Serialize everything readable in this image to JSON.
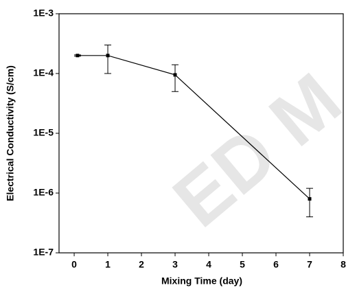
{
  "chart_data": {
    "type": "line",
    "xlabel": "Mixing Time (day)",
    "ylabel": "Electrical Conductivity (S/cm)",
    "watermark": "ED M",
    "x": [
      0.1,
      1,
      3,
      7
    ],
    "series": [
      {
        "color": "#000000",
        "values": [
          0.0002,
          0.0002,
          9.5e-05,
          8e-07
        ],
        "errors": [
          5e-06,
          0.0001,
          4.5e-05,
          4e-07
        ]
      }
    ],
    "xlim": [
      -0.45,
      8
    ],
    "xticks": [
      0,
      1,
      2,
      3,
      4,
      5,
      6,
      7,
      8
    ],
    "ylim": [
      1e-07,
      0.001
    ],
    "log_y": true,
    "yticks": [
      {
        "value": 1e-07,
        "label": "1E-7"
      },
      {
        "value": 1e-06,
        "label": "1E-6"
      },
      {
        "value": 1e-05,
        "label": "1E-5"
      },
      {
        "value": 0.0001,
        "label": "1E-4"
      },
      {
        "value": 0.001,
        "label": "1E-3"
      }
    ]
  }
}
